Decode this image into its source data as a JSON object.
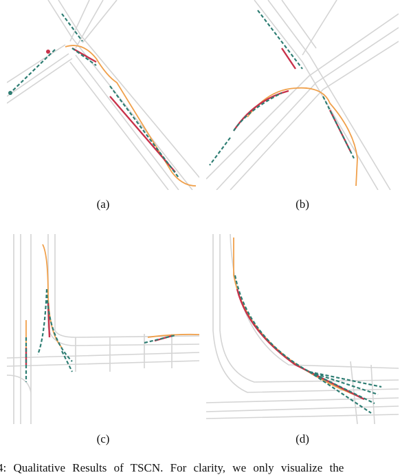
{
  "figure": {
    "panels": [
      {
        "label": "(a)"
      },
      {
        "label": "(b)"
      },
      {
        "label": "(c)"
      },
      {
        "label": "(d)"
      }
    ],
    "caption": "4:  Qualitative  Results  of  TSCN.  For  clarity,  we  only  visualize  the"
  }
}
